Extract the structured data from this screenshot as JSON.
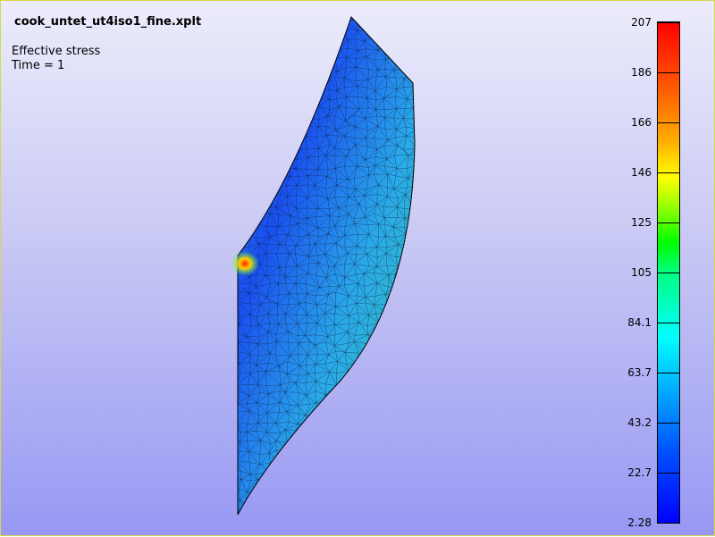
{
  "window": {
    "title": "cook_untet_ut4iso1_fine.xplt"
  },
  "info": {
    "variable": "Effective stress",
    "time": "Time = 1"
  },
  "colormap": {
    "labels": [
      "207",
      "186",
      "166",
      "146",
      "125",
      "105",
      "84.1",
      "63.7",
      "43.2",
      "22.7",
      "2.28"
    ],
    "colors": [
      "#ff0000",
      "#ff6000",
      "#ffb000",
      "#ffff00",
      "#80ff00",
      "#00ff00",
      "#00ff80",
      "#00ffff",
      "#00a0ff",
      "#0050ff",
      "#0000ff"
    ]
  },
  "mesh": {
    "fill_colors": [
      "#1a5cf0",
      "#2a7ff0",
      "#22b4e8",
      "#3cd4b0",
      "#5ad870"
    ],
    "hotspot_colors": [
      "#ff3000",
      "#ffd000",
      "#60ff40"
    ]
  }
}
